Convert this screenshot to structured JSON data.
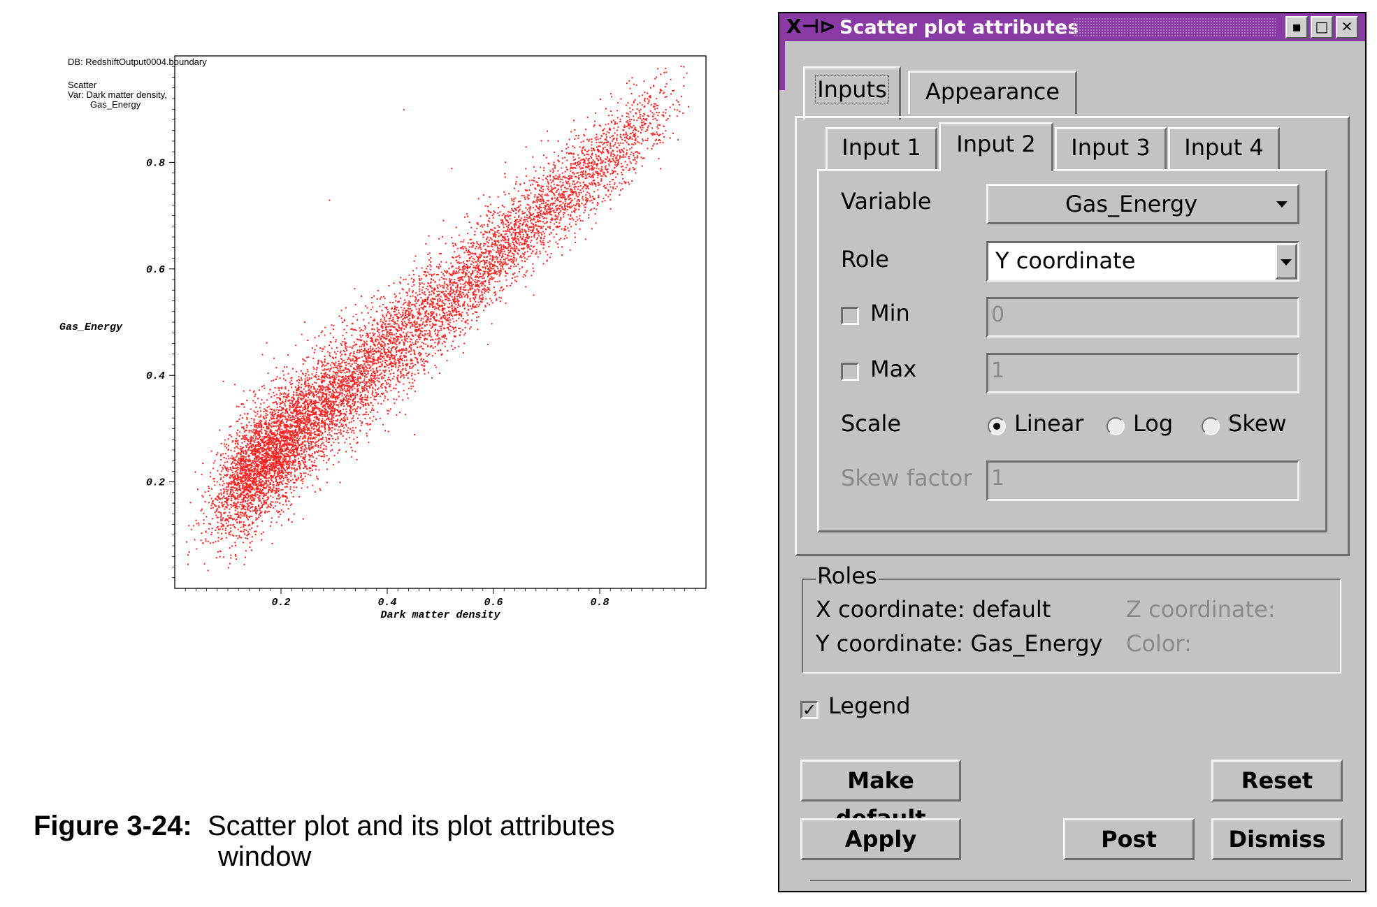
{
  "plot": {
    "db_text": "DB: RedshiftOutput0004.boundary",
    "plot_type": "Scatter",
    "var_line1": "Var: Dark matter density,",
    "var_line2": "Gas_Energy"
  },
  "chart_data": {
    "type": "scatter",
    "xlabel": "Dark matter density",
    "ylabel": "Gas_Energy",
    "xlim": [
      0.0,
      1.0
    ],
    "ylim": [
      0.0,
      1.0
    ],
    "x_ticks": [
      "0.2",
      "0.4",
      "0.6",
      "0.8"
    ],
    "y_ticks": [
      "0.2",
      "0.4",
      "0.6",
      "0.8"
    ],
    "marker_color": "#ff2020",
    "points": [
      [
        0.12,
        0.1
      ],
      [
        0.13,
        0.15
      ],
      [
        0.15,
        0.2
      ],
      [
        0.16,
        0.18
      ],
      [
        0.17,
        0.22
      ],
      [
        0.18,
        0.25
      ],
      [
        0.19,
        0.24
      ],
      [
        0.2,
        0.28
      ],
      [
        0.21,
        0.3
      ],
      [
        0.22,
        0.27
      ],
      [
        0.22,
        0.33
      ],
      [
        0.23,
        0.31
      ],
      [
        0.24,
        0.34
      ],
      [
        0.25,
        0.36
      ],
      [
        0.25,
        0.3
      ],
      [
        0.26,
        0.38
      ],
      [
        0.27,
        0.35
      ],
      [
        0.28,
        0.4
      ],
      [
        0.29,
        0.37
      ],
      [
        0.3,
        0.42
      ],
      [
        0.3,
        0.39
      ],
      [
        0.31,
        0.41
      ],
      [
        0.32,
        0.44
      ],
      [
        0.33,
        0.43
      ],
      [
        0.34,
        0.46
      ],
      [
        0.35,
        0.45
      ],
      [
        0.36,
        0.48
      ],
      [
        0.37,
        0.47
      ],
      [
        0.38,
        0.5
      ],
      [
        0.39,
        0.49
      ],
      [
        0.4,
        0.52
      ],
      [
        0.41,
        0.51
      ],
      [
        0.42,
        0.54
      ],
      [
        0.44,
        0.56
      ],
      [
        0.46,
        0.58
      ],
      [
        0.48,
        0.6
      ],
      [
        0.5,
        0.63
      ],
      [
        0.52,
        0.66
      ],
      [
        0.55,
        0.7
      ],
      [
        0.58,
        0.74
      ],
      [
        0.62,
        0.78
      ],
      [
        0.66,
        0.83
      ],
      [
        0.7,
        0.86
      ],
      [
        0.75,
        0.88
      ],
      [
        0.8,
        0.92
      ],
      [
        0.85,
        0.95
      ],
      [
        0.92,
        0.97
      ],
      [
        0.05,
        0.15
      ],
      [
        0.08,
        0.07
      ],
      [
        0.1,
        0.04
      ],
      [
        0.27,
        0.29
      ],
      [
        0.45,
        0.29
      ],
      [
        0.29,
        0.73
      ],
      [
        0.43,
        0.9
      ],
      [
        0.52,
        0.79
      ],
      [
        0.35,
        0.55
      ],
      [
        0.15,
        0.35
      ],
      [
        0.09,
        0.39
      ],
      [
        0.2,
        0.12
      ],
      [
        0.31,
        0.2
      ]
    ]
  },
  "window": {
    "title": "Scatter plot attributes",
    "outer_tabs": [
      "Inputs",
      "Appearance"
    ],
    "inner_tabs": [
      "Input 1",
      "Input 2",
      "Input 3",
      "Input 4"
    ],
    "variable_label": "Variable",
    "variable_value": "Gas_Energy",
    "role_label": "Role",
    "role_value": "Y coordinate",
    "min_label": "Min",
    "min_value": "0",
    "max_label": "Max",
    "max_value": "1",
    "scale_label": "Scale",
    "scale_options": [
      "Linear",
      "Log",
      "Skew"
    ],
    "scale_selected": "Linear",
    "skew_label": "Skew factor",
    "skew_value": "1",
    "roles_title": "Roles",
    "roles_x": "X coordinate: default",
    "roles_y": "Y coordinate: Gas_Energy",
    "roles_z": "Z coordinate:",
    "roles_color": "Color:",
    "legend_label": "Legend",
    "legend_checked": true,
    "buttons": {
      "make_default": "Make default",
      "reset": "Reset",
      "apply": "Apply",
      "post": "Post",
      "dismiss": "Dismiss"
    }
  },
  "caption": {
    "number": "Figure 3-24:",
    "text1": "Scatter plot and its plot attributes",
    "text2": "window"
  }
}
